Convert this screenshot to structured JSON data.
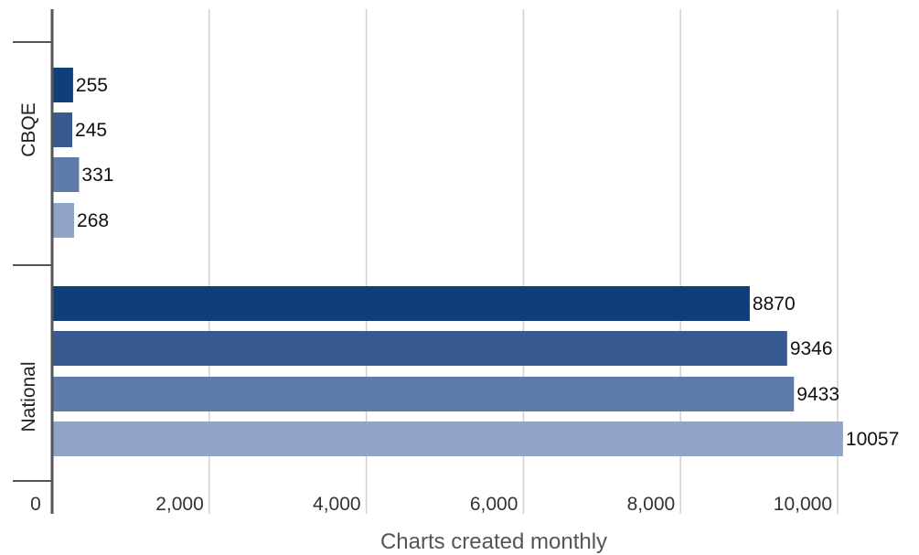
{
  "chart_data": {
    "type": "bar",
    "orientation": "horizontal",
    "categories": [
      "CBQE",
      "National"
    ],
    "series": [
      {
        "values": [
          255,
          8870
        ],
        "color": "#0f3f78"
      },
      {
        "values": [
          245,
          9346
        ],
        "color": "#395a91"
      },
      {
        "values": [
          331,
          9433
        ],
        "color": "#5f7ba9"
      },
      {
        "values": [
          268,
          10057
        ],
        "color": "#8fa4c7"
      }
    ],
    "data_labels": [
      [
        "255",
        "245",
        "331",
        "268"
      ],
      [
        "8870",
        "9346",
        "9433",
        "10057"
      ]
    ],
    "xlabel": "Charts created monthly",
    "ylabel": "",
    "xlim": [
      0,
      10000
    ],
    "x_ticks": [
      0,
      2000,
      4000,
      6000,
      8000,
      10000
    ],
    "x_tick_labels": [
      "0",
      "2,000",
      "4,000",
      "6,000",
      "8,000",
      "10,000"
    ],
    "grid": true,
    "legend": "none"
  }
}
